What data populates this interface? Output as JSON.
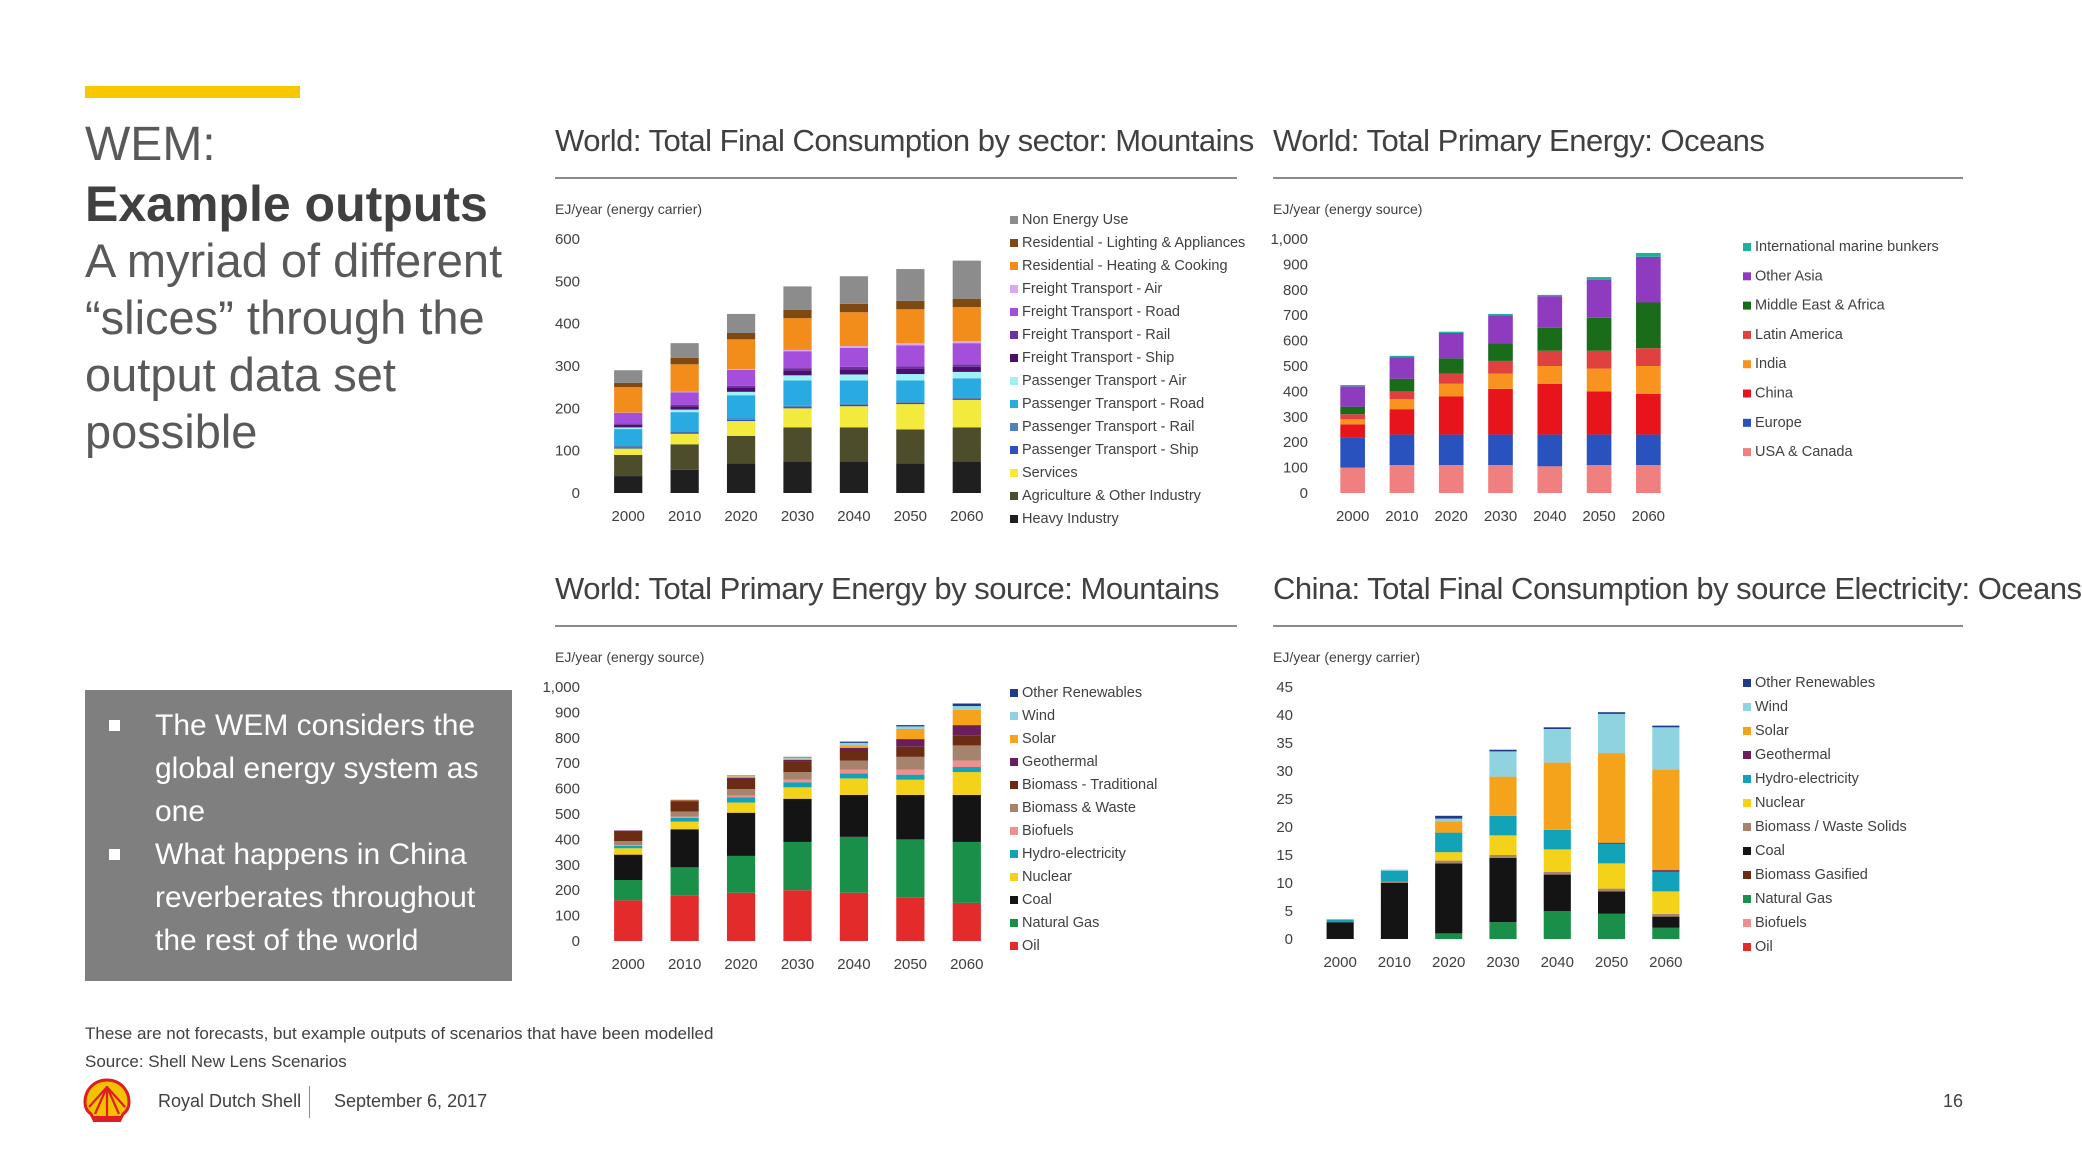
{
  "slide": {
    "title_line1": "WEM:",
    "title_line2": "Example outputs",
    "subtitle": "A myriad of different “slices” through the output data set possible",
    "bullets": [
      "The WEM considers the global energy system as one",
      "What happens in China reverberates throughout the rest of the world"
    ],
    "footnote_line1": "These are not forecasts, but example outputs of scenarios that have been modelled",
    "footnote_line2": "Source: Shell New Lens Scenarios",
    "company": "Royal Dutch Shell",
    "date": "September 6, 2017",
    "page_number": "16",
    "logo_icon": "shell-pecten-logo",
    "colors": {
      "accent": "#f5c800",
      "bullet_box": "#7f7f7f"
    }
  },
  "chart_data": [
    {
      "type": "bar",
      "stacked": true,
      "title": "World: Total Final Consumption by sector: Mountains",
      "ylabel": "EJ/year (energy carrier)",
      "ylim": [
        0,
        600
      ],
      "yticks": [
        "0",
        "100",
        "200",
        "300",
        "400",
        "500",
        "600"
      ],
      "categories": [
        "2000",
        "2010",
        "2020",
        "2030",
        "2040",
        "2050",
        "2060"
      ],
      "legend_position": "right",
      "series": [
        {
          "name": "Heavy Industry",
          "color": "#1f1f1f",
          "values": [
            40,
            55,
            70,
            75,
            75,
            70,
            75
          ]
        },
        {
          "name": "Agriculture & Other Industry",
          "color": "#4d4d2b",
          "values": [
            50,
            60,
            65,
            80,
            80,
            80,
            80
          ]
        },
        {
          "name": "Services",
          "color": "#f2ea3c",
          "values": [
            15,
            25,
            35,
            45,
            50,
            60,
            65
          ]
        },
        {
          "name": "Passenger Transport - Ship",
          "color": "#2d4fbf",
          "values": [
            3,
            3,
            3,
            3,
            3,
            3,
            3
          ]
        },
        {
          "name": "Passenger Transport - Rail",
          "color": "#4f81bd",
          "values": [
            3,
            3,
            3,
            3,
            3,
            3,
            3
          ]
        },
        {
          "name": "Passenger Transport - Road",
          "color": "#29abe2",
          "values": [
            40,
            45,
            55,
            60,
            55,
            50,
            45
          ]
        },
        {
          "name": "Passenger Transport - Air",
          "color": "#9ff0f7",
          "values": [
            4,
            6,
            8,
            12,
            14,
            15,
            15
          ]
        },
        {
          "name": "Freight Transport - Ship",
          "color": "#4b0f6f",
          "values": [
            6,
            8,
            10,
            12,
            12,
            12,
            12
          ]
        },
        {
          "name": "Freight Transport - Rail",
          "color": "#7030a0",
          "values": [
            3,
            3,
            4,
            5,
            6,
            6,
            6
          ]
        },
        {
          "name": "Freight Transport - Road",
          "color": "#a34fdb",
          "values": [
            25,
            30,
            38,
            40,
            45,
            50,
            50
          ]
        },
        {
          "name": "Freight Transport - Air",
          "color": "#d9a8ef",
          "values": [
            1,
            1,
            2,
            3,
            4,
            5,
            5
          ]
        },
        {
          "name": "Residential - Heating & Cooking",
          "color": "#f28c1a",
          "values": [
            60,
            65,
            70,
            75,
            80,
            80,
            80
          ]
        },
        {
          "name": "Residential - Lighting & Appliances",
          "color": "#7f4a11",
          "values": [
            10,
            15,
            15,
            20,
            20,
            20,
            20
          ]
        },
        {
          "name": "Non Energy Use",
          "color": "#8c8c8c",
          "values": [
            30,
            35,
            45,
            55,
            65,
            75,
            90
          ]
        }
      ]
    },
    {
      "type": "bar",
      "stacked": true,
      "title": "World: Total Primary Energy: Oceans",
      "ylabel": "EJ/year (energy source)",
      "ylim": [
        0,
        1000
      ],
      "yticks": [
        "0",
        "100",
        "200",
        "300",
        "400",
        "500",
        "600",
        "700",
        "800",
        "900",
        "1,000"
      ],
      "categories": [
        "2000",
        "2010",
        "2020",
        "2030",
        "2040",
        "2050",
        "2060"
      ],
      "legend_position": "right",
      "series": [
        {
          "name": "USA & Canada",
          "color": "#f08080",
          "values": [
            100,
            110,
            110,
            110,
            105,
            110,
            110
          ]
        },
        {
          "name": "Europe",
          "color": "#2a52be",
          "values": [
            120,
            120,
            120,
            120,
            125,
            120,
            120
          ]
        },
        {
          "name": "China",
          "color": "#e8141b",
          "values": [
            50,
            100,
            150,
            180,
            200,
            170,
            160
          ]
        },
        {
          "name": "India",
          "color": "#f7931e",
          "values": [
            20,
            40,
            50,
            60,
            70,
            90,
            110
          ]
        },
        {
          "name": "Latin America",
          "color": "#e04040",
          "values": [
            20,
            30,
            40,
            50,
            60,
            70,
            70
          ]
        },
        {
          "name": "Middle East & Africa",
          "color": "#1a6b1a",
          "values": [
            30,
            50,
            60,
            70,
            90,
            130,
            180
          ]
        },
        {
          "name": "Other Asia",
          "color": "#8e3bbf",
          "values": [
            80,
            85,
            100,
            110,
            125,
            150,
            180
          ]
        },
        {
          "name": "International marine bunkers",
          "color": "#1ab39a",
          "values": [
            5,
            5,
            5,
            5,
            5,
            10,
            15
          ]
        }
      ]
    },
    {
      "type": "bar",
      "stacked": true,
      "title": "World: Total Primary Energy by source: Mountains",
      "ylabel": "EJ/year (energy source)",
      "ylim": [
        0,
        1000
      ],
      "yticks": [
        "0",
        "100",
        "200",
        "300",
        "400",
        "500",
        "600",
        "700",
        "800",
        "900",
        "1,000"
      ],
      "categories": [
        "2000",
        "2010",
        "2020",
        "2030",
        "2040",
        "2050",
        "2060"
      ],
      "legend_position": "right",
      "series": [
        {
          "name": "Oil",
          "color": "#e32b2b",
          "values": [
            160,
            180,
            190,
            200,
            190,
            170,
            150
          ]
        },
        {
          "name": "Natural Gas",
          "color": "#1a8f4a",
          "values": [
            80,
            110,
            145,
            190,
            220,
            230,
            240
          ]
        },
        {
          "name": "Coal",
          "color": "#141414",
          "values": [
            100,
            150,
            170,
            170,
            165,
            175,
            185
          ]
        },
        {
          "name": "Nuclear",
          "color": "#f5d21a",
          "values": [
            25,
            30,
            40,
            45,
            65,
            60,
            90
          ]
        },
        {
          "name": "Hydro-electricity",
          "color": "#12a3b8",
          "values": [
            10,
            15,
            20,
            20,
            20,
            20,
            20
          ]
        },
        {
          "name": "Biofuels",
          "color": "#ef8f8f",
          "values": [
            3,
            5,
            8,
            10,
            15,
            20,
            25
          ]
        },
        {
          "name": "Biomass & Waste",
          "color": "#a6836d",
          "values": [
            15,
            20,
            25,
            30,
            35,
            50,
            60
          ]
        },
        {
          "name": "Biomass - Traditional",
          "color": "#6a2d14",
          "values": [
            40,
            40,
            40,
            40,
            40,
            40,
            40
          ]
        },
        {
          "name": "Geothermal",
          "color": "#6b1f5a",
          "values": [
            2,
            3,
            5,
            8,
            10,
            30,
            40
          ]
        },
        {
          "name": "Solar",
          "color": "#f5a31a",
          "values": [
            0,
            2,
            5,
            5,
            10,
            40,
            60
          ]
        },
        {
          "name": "Wind",
          "color": "#8fd3e0",
          "values": [
            0,
            2,
            4,
            5,
            10,
            10,
            15
          ]
        },
        {
          "name": "Other Renewables",
          "color": "#1f3a8a",
          "values": [
            0,
            0,
            1,
            2,
            5,
            5,
            10
          ]
        }
      ]
    },
    {
      "type": "bar",
      "stacked": true,
      "title": "China: Total Final Consumption by source Electricity: Oceans",
      "ylabel": "EJ/year (energy carrier)",
      "ylim": [
        0,
        45
      ],
      "yticks": [
        "0",
        "5",
        "10",
        "15",
        "20",
        "25",
        "30",
        "35",
        "40",
        "45"
      ],
      "categories": [
        "2000",
        "2010",
        "2020",
        "2030",
        "2040",
        "2050",
        "2060"
      ],
      "legend_position": "right",
      "series": [
        {
          "name": "Oil",
          "color": "#e32b2b",
          "values": [
            0,
            0,
            0,
            0,
            0,
            0,
            0
          ]
        },
        {
          "name": "Biofuels",
          "color": "#ef8f8f",
          "values": [
            0,
            0,
            0,
            0,
            0,
            0,
            0
          ]
        },
        {
          "name": "Natural Gas",
          "color": "#1a8f4a",
          "values": [
            0,
            0,
            1,
            3,
            5,
            4.5,
            2
          ]
        },
        {
          "name": "Biomass Gasified",
          "color": "#6a2d14",
          "values": [
            0,
            0,
            0,
            0,
            0,
            0,
            0
          ]
        },
        {
          "name": "Coal",
          "color": "#141414",
          "values": [
            3,
            10,
            12.5,
            11.5,
            6.5,
            4,
            2
          ]
        },
        {
          "name": "Biomass / Waste Solids",
          "color": "#a6836d",
          "values": [
            0,
            0.2,
            0.5,
            0.5,
            0.5,
            0.5,
            0.5
          ]
        },
        {
          "name": "Nuclear",
          "color": "#f5d21a",
          "values": [
            0,
            0,
            1.5,
            3.5,
            4,
            4.5,
            4
          ]
        },
        {
          "name": "Hydro-electricity",
          "color": "#12a3b8",
          "values": [
            0.5,
            2,
            3.5,
            3.5,
            3.5,
            3.5,
            3.5
          ]
        },
        {
          "name": "Geothermal",
          "color": "#6b1f5a",
          "values": [
            0,
            0,
            0,
            0,
            0,
            0.2,
            0.3
          ]
        },
        {
          "name": "Solar",
          "color": "#f5a31a",
          "values": [
            0,
            0,
            2,
            7,
            12,
            16,
            18
          ]
        },
        {
          "name": "Wind",
          "color": "#8fd3e0",
          "values": [
            0,
            0.2,
            0.5,
            4.5,
            6,
            7,
            7.5
          ]
        },
        {
          "name": "Other Renewables",
          "color": "#1f3a8a",
          "values": [
            0,
            0,
            0.5,
            0.3,
            0.3,
            0.3,
            0.3
          ]
        }
      ]
    }
  ]
}
